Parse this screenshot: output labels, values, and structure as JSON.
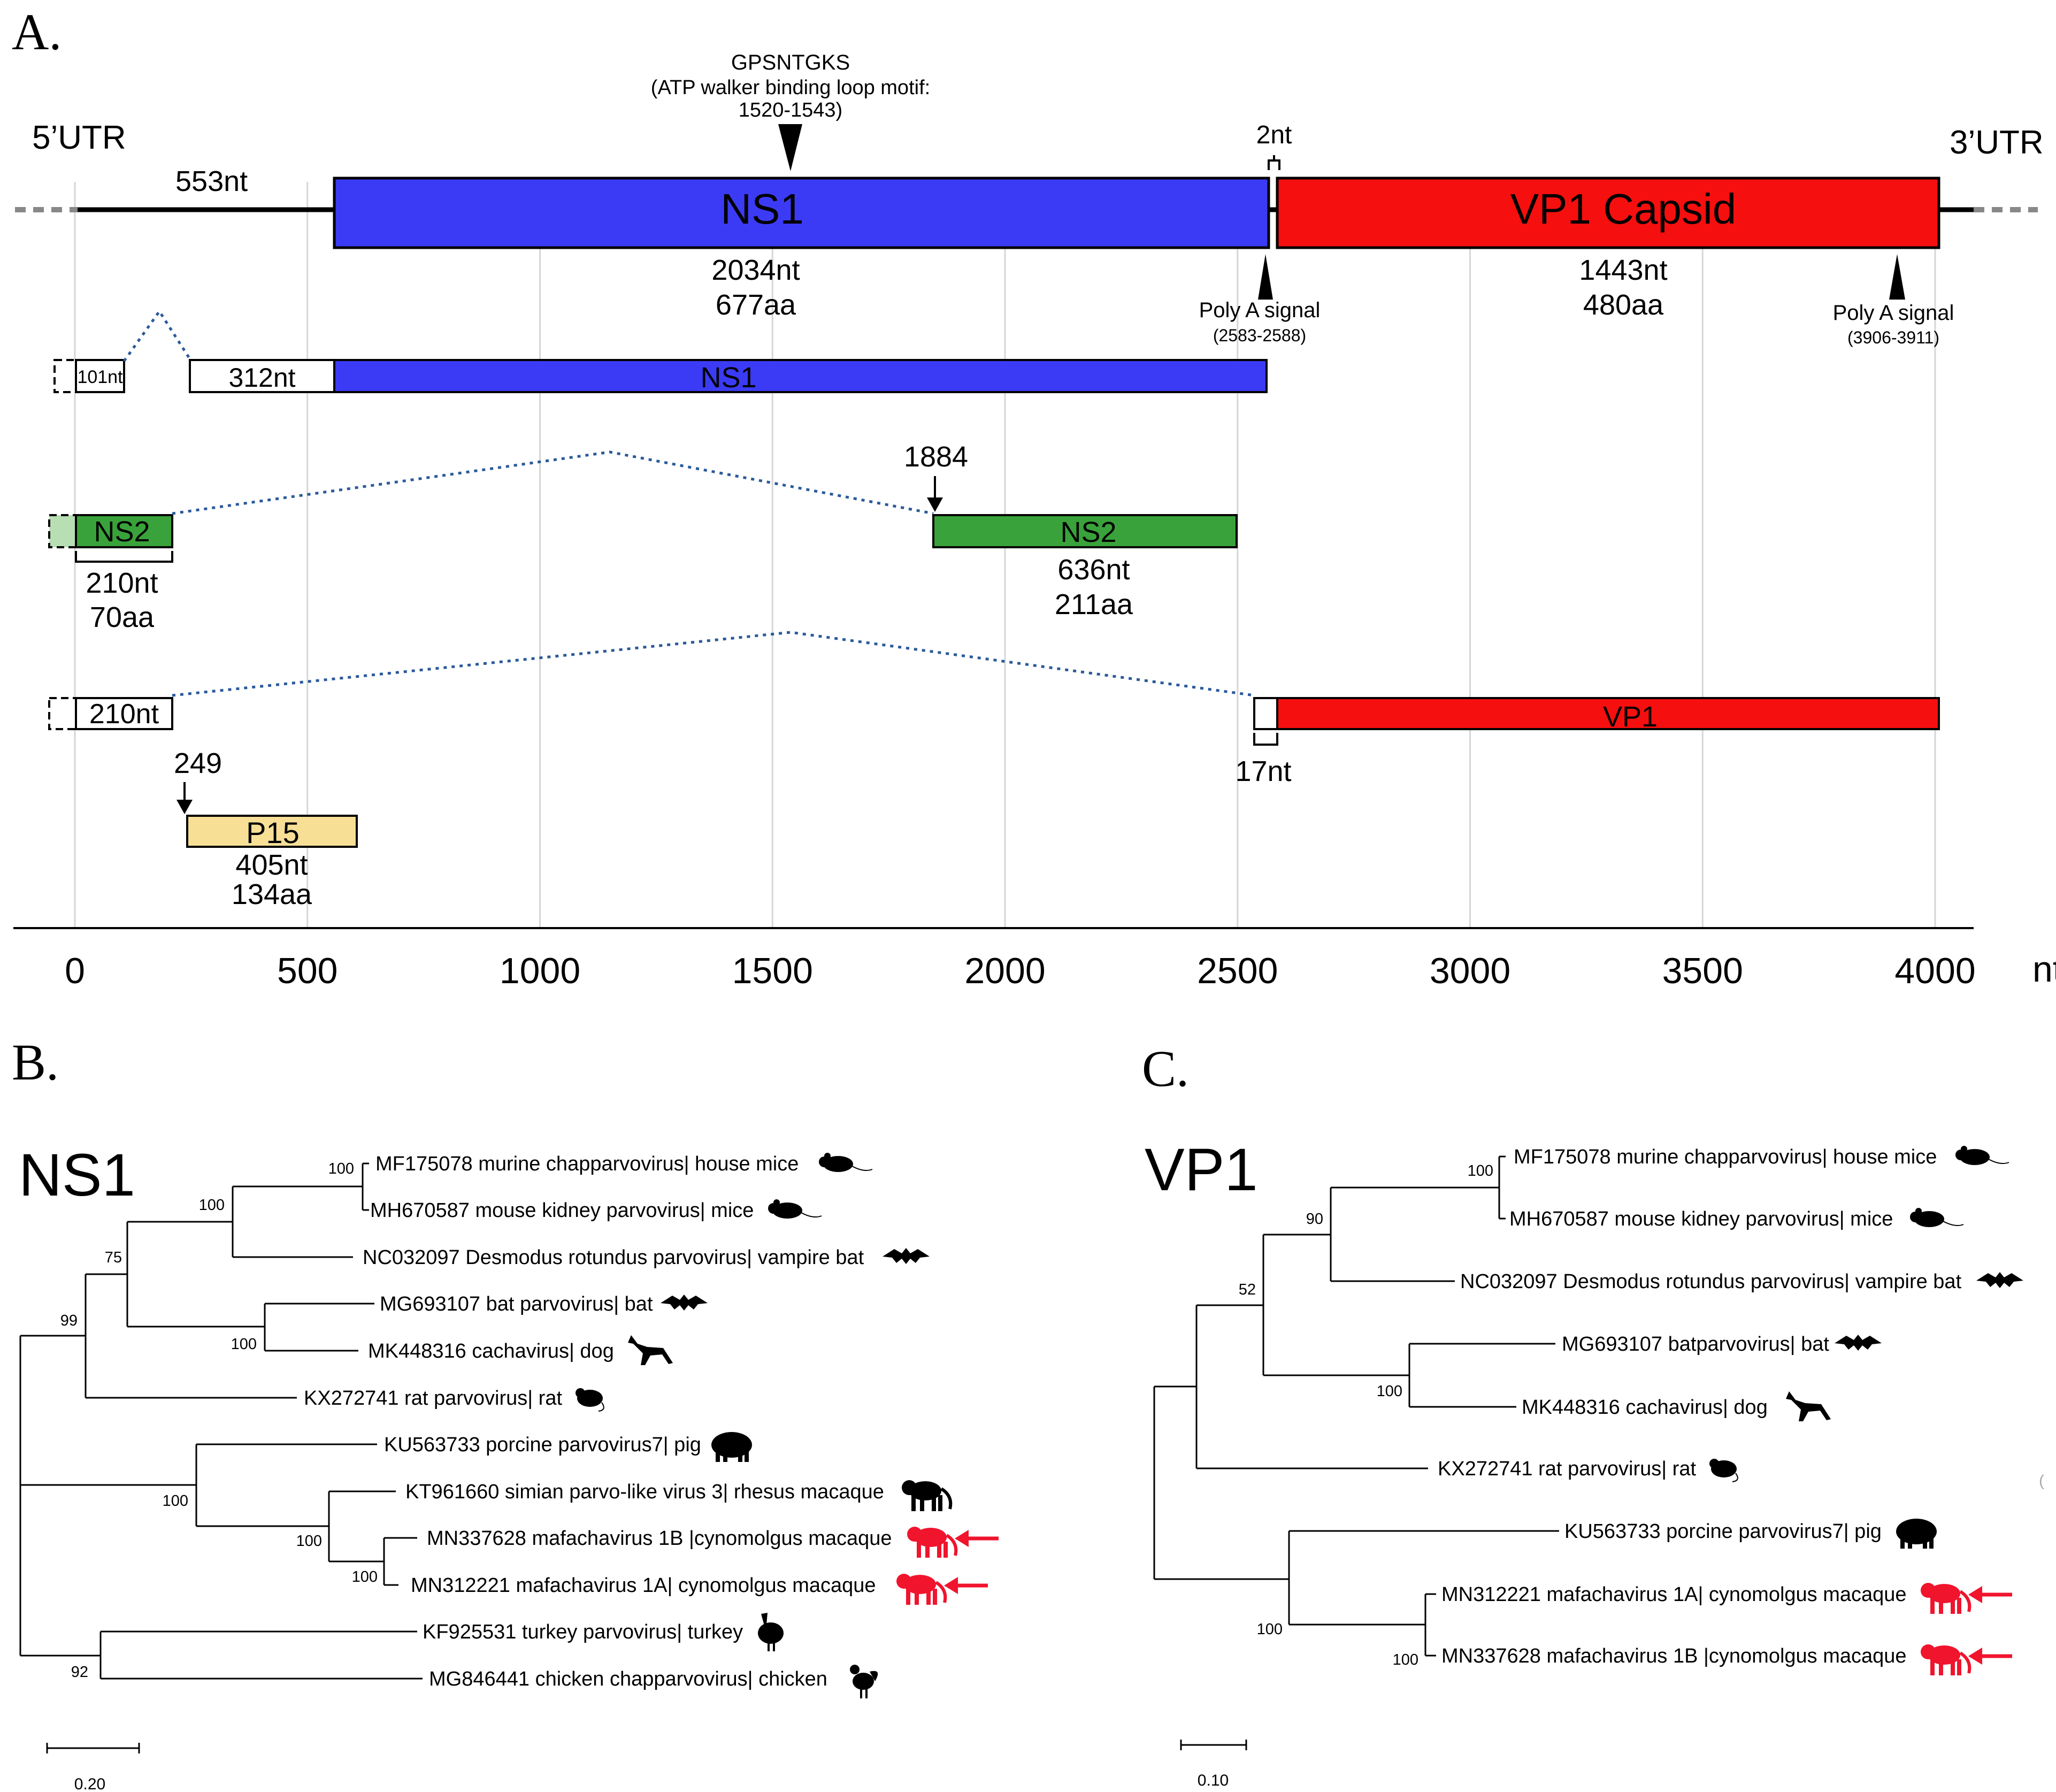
{
  "panels": {
    "a": "A.",
    "b": "B.",
    "c": "C."
  },
  "genome": {
    "utr5": "5’UTR",
    "utr3": "3’UTR",
    "utr5_len": "553nt",
    "motif_name": "GPSNTGKS",
    "motif_desc": "(ATP walker binding loop motif:",
    "motif_pos": "1520-1543)",
    "gap": "2nt",
    "ns1": {
      "name": "NS1",
      "nt": "2034nt",
      "aa": "677aa"
    },
    "vp1": {
      "name": "VP1 Capsid",
      "nt": "1443nt",
      "aa": "480aa"
    },
    "polyA1": {
      "label": "Poly A signal",
      "pos": "(2583-2588)"
    },
    "polyA2": {
      "label": "Poly A signal",
      "pos": "(3906-3911)"
    }
  },
  "transcripts": {
    "ns1": {
      "exon1": "101nt",
      "exon2": "312nt",
      "label": "NS1"
    },
    "ns2": {
      "label1": "NS2",
      "label2": "NS2",
      "len1_nt": "210nt",
      "len1_aa": "70aa",
      "start": "1884",
      "len2_nt": "636nt",
      "len2_aa": "211aa"
    },
    "vp1": {
      "exon1": "210nt",
      "label": "VP1",
      "len": "17nt"
    },
    "p15": {
      "label": "P15",
      "start": "249",
      "nt": "405nt",
      "aa": "134aa"
    }
  },
  "axis": {
    "ticks": [
      "0",
      "500",
      "1000",
      "1500",
      "2000",
      "2500",
      "3000",
      "3500",
      "4000"
    ],
    "tick_values": [
      0,
      500,
      1000,
      1500,
      2000,
      2500,
      3000,
      3500,
      4000
    ],
    "unit": "nt"
  },
  "tree_ns1": {
    "title": "NS1",
    "scale": "0.20",
    "bootstrap": [
      "100",
      "100",
      "75",
      "99",
      "100",
      "100",
      "100",
      "100",
      "92"
    ],
    "taxa": [
      "MF175078 murine chapparvovirus| house mice",
      "MH670587 mouse kidney parvovirus| mice",
      "NC032097 Desmodus rotundus parvovirus| vampire bat",
      "MG693107 bat parvovirus| bat",
      "MK448316 cachavirus| dog",
      "KX272741 rat parvovirus| rat",
      "KU563733 porcine parvovirus7| pig",
      "KT961660 simian parvo-like virus 3| rhesus macaque",
      "MN337628 mafachavirus 1B |cynomolgus macaque",
      "MN312221 mafachavirus 1A| cynomolgus macaque",
      "KF925531 turkey parvovirus| turkey",
      "MG846441 chicken chapparvovirus| chicken"
    ]
  },
  "tree_vp1": {
    "title": "VP1",
    "scale": "0.10",
    "bootstrap": [
      "100",
      "90",
      "52",
      "100",
      "100",
      "100"
    ],
    "taxa": [
      "MF175078 murine chapparvovirus| house mice",
      "MH670587 mouse kidney parvovirus| mice",
      "NC032097 Desmodus rotundus parvovirus| vampire bat",
      "MG693107 batparvovirus| bat",
      "MK448316 cachavirus| dog",
      "KX272741 rat parvovirus| rat",
      "KU563733 porcine parvovirus7| pig",
      "MN312221 mafachavirus 1A| cynomolgus macaque",
      "MN337628 mafachavirus 1B |cynomolgus macaque"
    ]
  },
  "colors": {
    "ns1": "#3b3bf5",
    "vp1": "#f50f0f",
    "ns2": "#3aa23a",
    "ns2_light": "#b8dfb4",
    "p15": "#f8df96",
    "highlight": "#f0142d",
    "dotted": "#2a5a9a"
  }
}
